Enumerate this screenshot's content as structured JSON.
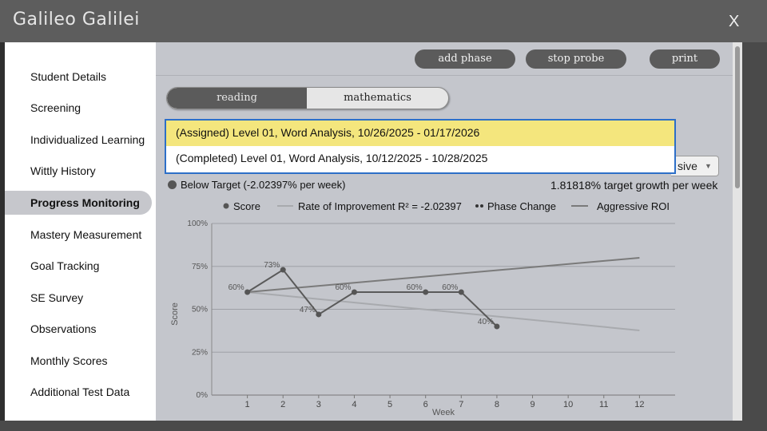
{
  "window": {
    "title": "Galileo Galilei",
    "close_label": "X"
  },
  "sidebar": {
    "items": [
      {
        "label": "Student Details",
        "active": false
      },
      {
        "label": "Screening",
        "active": false
      },
      {
        "label": "Individualized Learning",
        "active": false
      },
      {
        "label": "Wittly History",
        "active": false
      },
      {
        "label": "Progress Monitoring",
        "active": true
      },
      {
        "label": "Mastery Measurement",
        "active": false
      },
      {
        "label": "Goal Tracking",
        "active": false
      },
      {
        "label": "SE Survey",
        "active": false
      },
      {
        "label": "Observations",
        "active": false
      },
      {
        "label": "Monthly Scores",
        "active": false
      },
      {
        "label": "Additional Test Data",
        "active": false
      }
    ]
  },
  "toolbar": {
    "add_phase_label": "add phase",
    "stop_probe_label": "stop probe",
    "print_label": "print"
  },
  "subject_tabs": {
    "reading": "reading",
    "mathematics": "mathematics",
    "active": "reading"
  },
  "probe_dropdown": {
    "options": [
      {
        "label": "(Assigned) Level 01, Word Analysis, 10/26/2025 - 01/17/2026",
        "selected": true
      },
      {
        "label": "(Completed) Level 01, Word Analysis, 10/12/2025 - 10/28/2025",
        "selected": false
      }
    ]
  },
  "roi_select": {
    "value": "sive"
  },
  "status": {
    "below_target": "Below Target (-2.02397% per week)",
    "target_growth": "1.81818% target growth per week"
  },
  "legend": {
    "score": "Score",
    "rate": "Rate of Improvement R² = -2.02397",
    "phase": "Phase Change",
    "aggressive": "Aggressive ROI"
  },
  "colors": {
    "score_line": "#5a5a5a",
    "rate_line": "#a8aaae",
    "aggressive_line": "#7a7a7a",
    "highlight": "#f4e67d",
    "dropdown_border": "#2d6fc8"
  },
  "chart_data": {
    "type": "line",
    "xlabel": "Week",
    "ylabel": "Score",
    "x_ticks": [
      "1",
      "2",
      "3",
      "4",
      "5",
      "6",
      "7",
      "8",
      "9",
      "10",
      "11",
      "12"
    ],
    "y_ticks": [
      "0%",
      "25%",
      "50%",
      "75%",
      "100%"
    ],
    "xlim": [
      0,
      13
    ],
    "ylim": [
      0,
      100
    ],
    "series": [
      {
        "name": "Score",
        "x": [
          1,
          2,
          3,
          4,
          6,
          7,
          8
        ],
        "y": [
          60,
          73,
          47,
          60,
          60,
          60,
          40
        ],
        "labels": [
          "60%",
          "73%",
          "47%",
          "60%",
          "60%",
          "60%",
          "40%"
        ]
      },
      {
        "name": "Rate of Improvement R² = -2.02397",
        "x": [
          1,
          12
        ],
        "y": [
          60,
          37.7
        ]
      },
      {
        "name": "Aggressive ROI",
        "x": [
          1,
          12
        ],
        "y": [
          60,
          80
        ]
      }
    ]
  }
}
